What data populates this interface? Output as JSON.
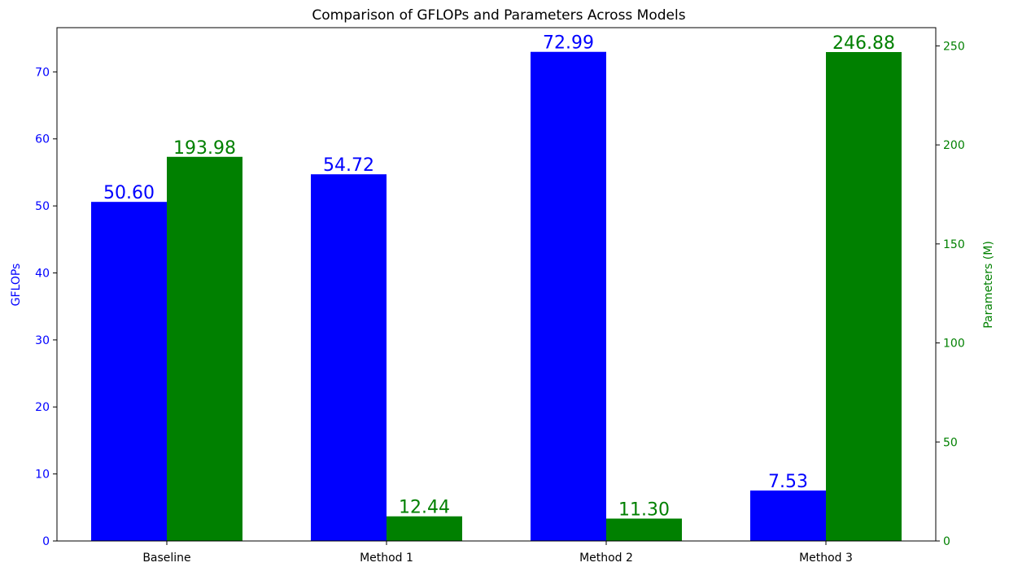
{
  "chart_data": {
    "type": "bar",
    "title": "Comparison of GFLOPs and Parameters Across Models",
    "categories": [
      "Baseline",
      "Method 1",
      "Method 2",
      "Method 3"
    ],
    "series": [
      {
        "name": "GFLOPs",
        "axis": "left",
        "color": "#0000ff",
        "values": [
          50.6,
          54.72,
          72.99,
          7.53
        ],
        "labels": [
          "50.60",
          "54.72",
          "72.99",
          "7.53"
        ]
      },
      {
        "name": "Parameters (M)",
        "axis": "right",
        "color": "#008000",
        "values": [
          193.98,
          12.44,
          11.3,
          246.88
        ],
        "labels": [
          "193.98",
          "12.44",
          "11.30",
          "246.88"
        ]
      }
    ],
    "ylabel": "GFLOPs",
    "ylabel_right": "Parameters (M)",
    "ylim": [
      0,
      76.6
    ],
    "ylim_right": [
      0,
      259.2
    ],
    "yticks": [
      0,
      10,
      20,
      30,
      40,
      50,
      60,
      70
    ],
    "yticks_right": [
      0,
      50,
      100,
      150,
      200,
      250
    ],
    "grid": false,
    "legend": "none"
  }
}
